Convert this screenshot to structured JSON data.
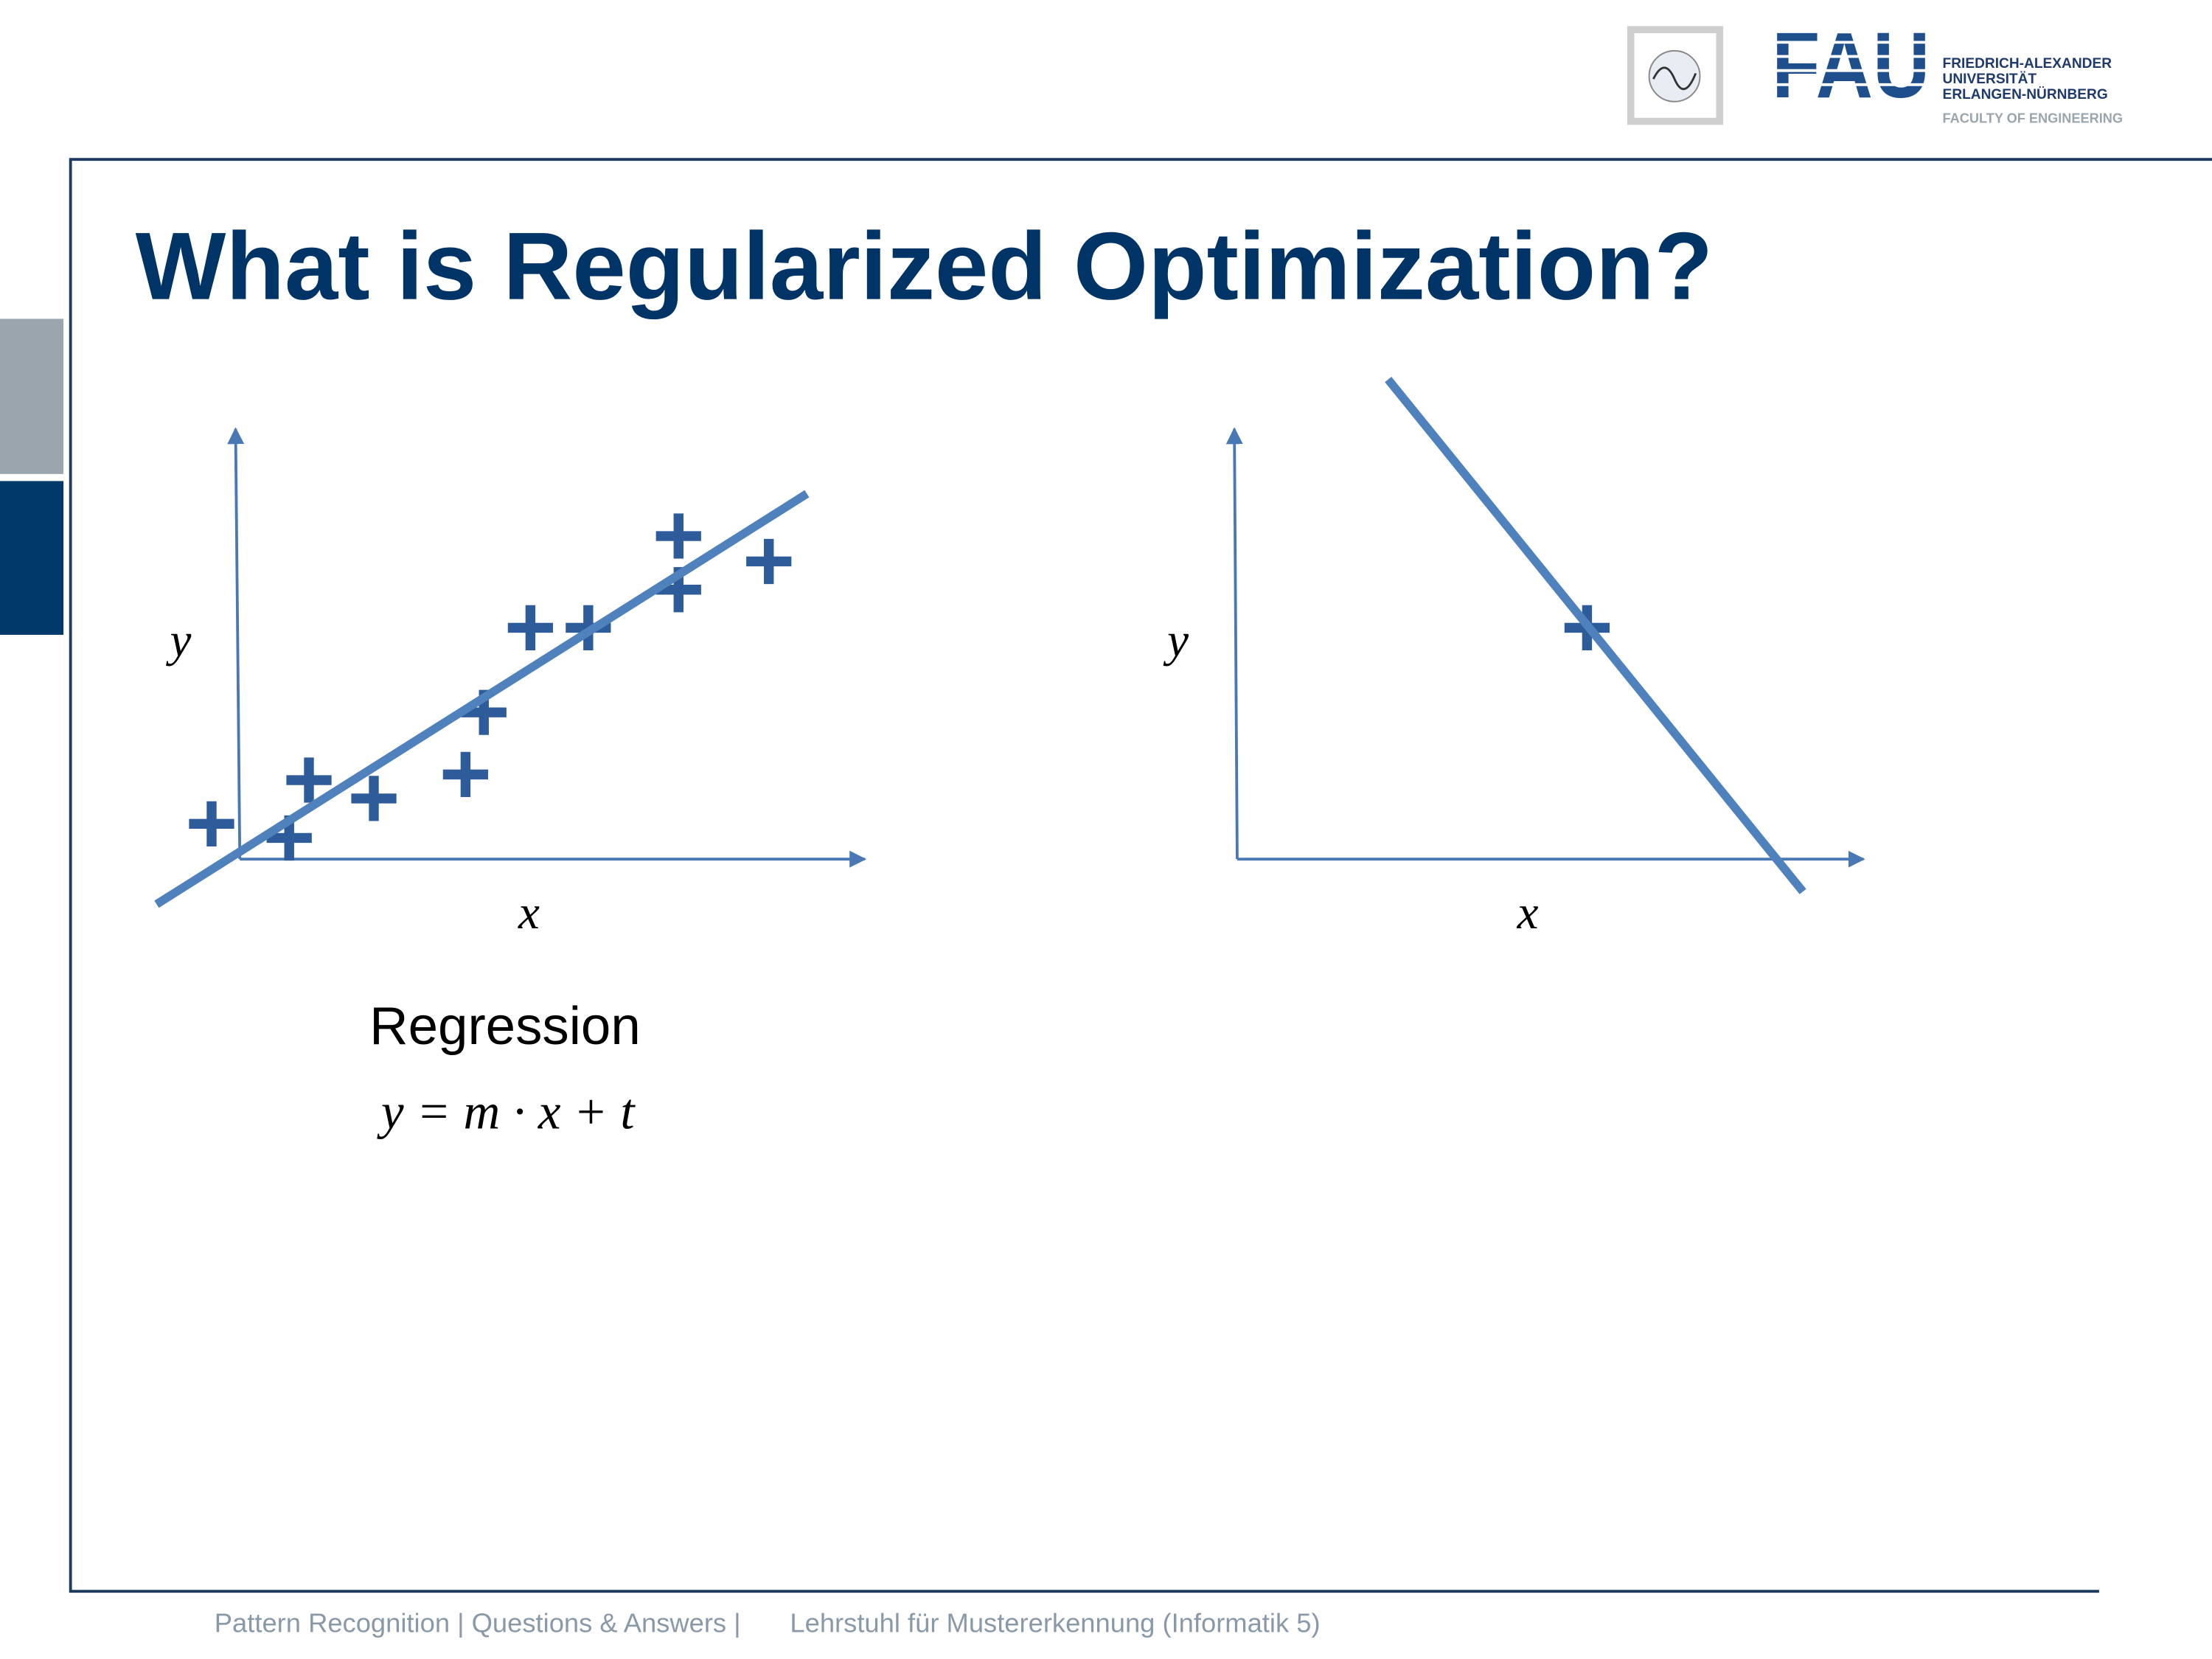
{
  "header": {
    "logo": {
      "wordmark": "FAU",
      "lines": [
        "FRIEDRICH-ALEXANDER",
        "UNIVERSITÄT",
        "ERLANGEN-NÜRNBERG"
      ],
      "faculty": "FACULTY OF ENGINEERING"
    }
  },
  "slide": {
    "title": "What is Regularized Optimization?",
    "diagrams": [
      {
        "y_label": "y",
        "x_label": "x",
        "caption": "Regression",
        "formula": "y = m · x + t"
      },
      {
        "y_label": "y",
        "x_label": "x"
      }
    ]
  },
  "footer": {
    "course": "Pattern Recognition | Questions & Answers |",
    "chair": "Lehrstuhl für Mustererkennung (Informatik 5)"
  }
}
